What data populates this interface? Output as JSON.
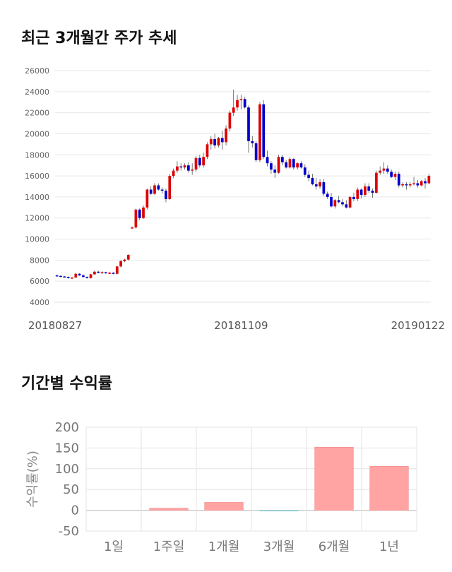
{
  "titles": {
    "price_trend": "최근 3개월간 주가 추세",
    "period_returns": "기간별 수익률"
  },
  "chart_data": [
    {
      "type": "candlestick",
      "title": "최근 3개월간 주가 추세",
      "ylim": [
        4000,
        26000
      ],
      "yticks": [
        4000,
        6000,
        8000,
        10000,
        12000,
        14000,
        16000,
        18000,
        20000,
        22000,
        24000,
        26000
      ],
      "date_labels": [
        {
          "label": "20180827",
          "index": 0
        },
        {
          "label": "20181109",
          "index": 49
        },
        {
          "label": "20190122",
          "index": 99
        }
      ],
      "up_color": "#dd0000",
      "down_color": "#0000cc",
      "candles": [
        [
          6550,
          6600,
          6450,
          6500
        ],
        [
          6500,
          6550,
          6400,
          6450
        ],
        [
          6450,
          6500,
          6350,
          6400
        ],
        [
          6400,
          6450,
          6250,
          6300
        ],
        [
          6300,
          6400,
          6200,
          6350
        ],
        [
          6350,
          6800,
          6300,
          6700
        ],
        [
          6700,
          6750,
          6500,
          6550
        ],
        [
          6550,
          6650,
          6350,
          6400
        ],
        [
          6400,
          6450,
          6250,
          6300
        ],
        [
          6300,
          6700,
          6250,
          6650
        ],
        [
          6650,
          7000,
          6600,
          6900
        ],
        [
          6900,
          7000,
          6750,
          6800
        ],
        [
          6800,
          6950,
          6700,
          6850
        ],
        [
          6850,
          6900,
          6700,
          6750
        ],
        [
          6750,
          6900,
          6700,
          6800
        ],
        [
          6800,
          6850,
          6650,
          6700
        ],
        [
          6700,
          7450,
          6650,
          7400
        ],
        [
          7400,
          8000,
          7300,
          7900
        ],
        [
          7900,
          8150,
          7800,
          8050
        ],
        [
          8050,
          8550,
          7950,
          8500
        ],
        [
          11100,
          11200,
          11000,
          11100
        ],
        [
          11100,
          12900,
          11000,
          12800
        ],
        [
          12800,
          12900,
          11800,
          12000
        ],
        [
          12000,
          13200,
          11900,
          13000
        ],
        [
          13000,
          14800,
          12800,
          14700
        ],
        [
          14700,
          15000,
          14200,
          14300
        ],
        [
          14300,
          15300,
          14200,
          15100
        ],
        [
          15100,
          15300,
          14600,
          14700
        ],
        [
          14700,
          14900,
          14300,
          14600
        ],
        [
          14600,
          14800,
          13500,
          13800
        ],
        [
          13800,
          16200,
          13700,
          16000
        ],
        [
          16000,
          16700,
          15800,
          16500
        ],
        [
          16500,
          17400,
          16300,
          16900
        ],
        [
          16900,
          17200,
          16500,
          16800
        ],
        [
          16800,
          17200,
          16600,
          17000
        ],
        [
          17000,
          17300,
          16300,
          16500
        ],
        [
          16500,
          17200,
          16100,
          16600
        ],
        [
          16600,
          17900,
          16400,
          17700
        ],
        [
          17700,
          18000,
          16800,
          17000
        ],
        [
          17000,
          18200,
          16800,
          17800
        ],
        [
          17800,
          19200,
          17600,
          19000
        ],
        [
          19000,
          19800,
          18500,
          19500
        ],
        [
          19500,
          20000,
          18600,
          18900
        ],
        [
          18900,
          19700,
          18700,
          19600
        ],
        [
          19600,
          20300,
          18500,
          19200
        ],
        [
          19200,
          20800,
          18900,
          20500
        ],
        [
          20500,
          22200,
          20200,
          22000
        ],
        [
          22000,
          24200,
          21700,
          22500
        ],
        [
          22500,
          23700,
          22200,
          23200
        ],
        [
          23200,
          23700,
          22300,
          23300
        ],
        [
          23300,
          23500,
          22400,
          22500
        ],
        [
          22500,
          22700,
          18200,
          19300
        ],
        [
          19300,
          19800,
          18700,
          19100
        ],
        [
          19100,
          19300,
          17300,
          17500
        ],
        [
          17500,
          23000,
          17300,
          22800
        ],
        [
          22800,
          23200,
          17600,
          17800
        ],
        [
          17800,
          18400,
          16900,
          17200
        ],
        [
          17200,
          17400,
          16200,
          16600
        ],
        [
          16600,
          17000,
          15800,
          16300
        ],
        [
          16300,
          18000,
          16200,
          17800
        ],
        [
          17800,
          18000,
          17000,
          17300
        ],
        [
          17300,
          17500,
          16700,
          16800
        ],
        [
          16800,
          17800,
          16700,
          17600
        ],
        [
          17600,
          17700,
          16600,
          16800
        ],
        [
          16800,
          17300,
          16600,
          17200
        ],
        [
          17200,
          17400,
          16700,
          16800
        ],
        [
          16800,
          17100,
          15900,
          16100
        ],
        [
          16100,
          16500,
          15500,
          15800
        ],
        [
          15800,
          16200,
          15100,
          15200
        ],
        [
          15200,
          15800,
          14700,
          15000
        ],
        [
          15000,
          15700,
          14800,
          15400
        ],
        [
          15400,
          15700,
          14100,
          14300
        ],
        [
          14300,
          14500,
          13800,
          14000
        ],
        [
          14000,
          14400,
          13000,
          13100
        ],
        [
          13100,
          13800,
          12900,
          13700
        ],
        [
          13700,
          14100,
          13400,
          13500
        ],
        [
          13500,
          13800,
          13100,
          13300
        ],
        [
          13300,
          13700,
          12900,
          13000
        ],
        [
          13000,
          14100,
          12900,
          14000
        ],
        [
          14000,
          14400,
          13600,
          13800
        ],
        [
          13800,
          14900,
          13600,
          14700
        ],
        [
          14700,
          14800,
          13900,
          14200
        ],
        [
          14200,
          15300,
          14000,
          15000
        ],
        [
          15000,
          15300,
          14400,
          14600
        ],
        [
          14600,
          14800,
          13900,
          14400
        ],
        [
          14400,
          16500,
          14300,
          16300
        ],
        [
          16300,
          16900,
          16100,
          16500
        ],
        [
          16500,
          17300,
          16200,
          16700
        ],
        [
          16700,
          17000,
          16200,
          16400
        ],
        [
          16400,
          16600,
          15800,
          15900
        ],
        [
          15900,
          16400,
          15600,
          16200
        ],
        [
          16200,
          16400,
          14900,
          15100
        ],
        [
          15100,
          15400,
          14900,
          15200
        ],
        [
          15200,
          15400,
          14700,
          15100
        ],
        [
          15100,
          15400,
          14900,
          15200
        ],
        [
          15200,
          15900,
          15100,
          15300
        ],
        [
          15300,
          15600,
          14900,
          15100
        ],
        [
          15100,
          15600,
          15000,
          15500
        ],
        [
          15500,
          15800,
          14800,
          15300
        ],
        [
          15300,
          16200,
          15200,
          16000
        ]
      ]
    },
    {
      "type": "bar",
      "title": "기간별 수익률",
      "ylabel": "수익률(%)",
      "ylim": [
        -50,
        200
      ],
      "yticks": [
        -50,
        0,
        50,
        100,
        150,
        200
      ],
      "categories": [
        "1일",
        "1주일",
        "1개월",
        "3개월",
        "6개월",
        "1년"
      ],
      "values": [
        0,
        5,
        19,
        -2,
        152,
        106
      ],
      "positive_color": "#ffa3a3",
      "negative_color": "#a3d8e8"
    }
  ]
}
